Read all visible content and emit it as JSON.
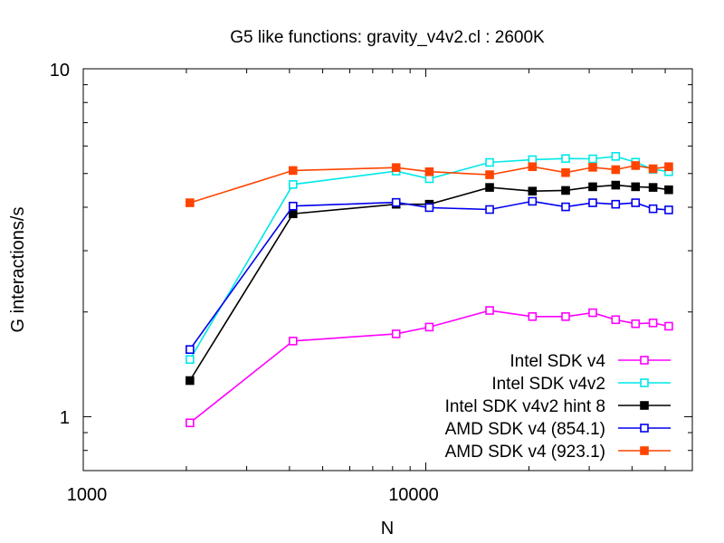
{
  "chart_data": {
    "type": "line",
    "title": "G5 like functions: gravity_v4v2.cl : 2600K",
    "xlabel": "N",
    "ylabel": "G interactions/s",
    "xscale": "log",
    "yscale": "log",
    "xlim": [
      1000,
      60000
    ],
    "ylim": [
      0.7,
      10
    ],
    "x_tick_labels": [
      "1000",
      "10000"
    ],
    "y_tick_labels": [
      "1",
      "10"
    ],
    "grid": false,
    "legend_position": "bottom-right",
    "x": [
      2048,
      4096,
      8192,
      10240,
      15360,
      20480,
      25600,
      30720,
      35840,
      40960,
      46080,
      51200
    ],
    "series": [
      {
        "name": "Intel SDK v4",
        "color": "#ff00ff",
        "marker": "open-square",
        "values": [
          0.96,
          1.65,
          1.73,
          1.81,
          2.02,
          1.94,
          1.94,
          1.99,
          1.9,
          1.85,
          1.86,
          1.82
        ]
      },
      {
        "name": "Intel SDK v4v2",
        "color": "#00e8e8",
        "marker": "open-square",
        "values": [
          1.46,
          4.65,
          5.08,
          4.83,
          5.38,
          5.48,
          5.52,
          5.51,
          5.6,
          5.39,
          5.14,
          5.06
        ]
      },
      {
        "name": "Intel SDK v4v2 hint 8",
        "color": "#000000",
        "marker": "filled-square",
        "values": [
          1.27,
          3.83,
          4.08,
          4.08,
          4.56,
          4.45,
          4.47,
          4.58,
          4.63,
          4.58,
          4.56,
          4.49
        ]
      },
      {
        "name": "AMD SDK v4 (854.1)",
        "color": "#0000ee",
        "marker": "open-square",
        "values": [
          1.56,
          4.03,
          4.13,
          3.99,
          3.94,
          4.16,
          4.01,
          4.12,
          4.08,
          4.12,
          3.96,
          3.93
        ]
      },
      {
        "name": "AMD SDK v4 (923.1)",
        "color": "#ff4400",
        "marker": "filled-square",
        "values": [
          4.12,
          5.1,
          5.2,
          5.06,
          4.96,
          5.23,
          5.03,
          5.21,
          5.13,
          5.27,
          5.16,
          5.23
        ]
      }
    ]
  }
}
